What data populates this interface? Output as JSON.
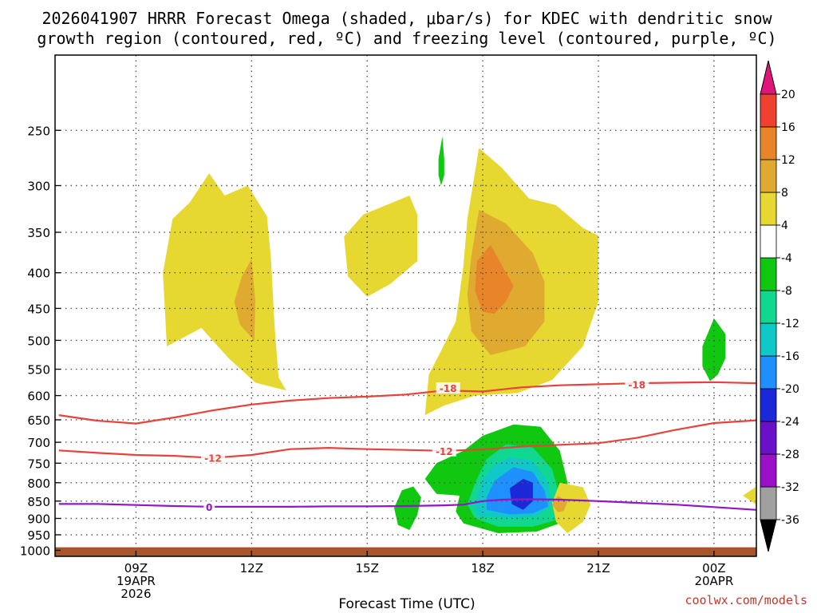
{
  "chart_data": {
    "type": "contour",
    "title_line1": "2026041907 HRRR Forecast Omega (shaded, μbar/s) for KDEC with dendritic snow",
    "title_line2": "growth region (contoured, red, ºC) and freezing level (contoured, purple, ºC)",
    "xlabel": "Forecast Time (UTC)",
    "ylabel": "",
    "credit": "coolwx.com/models",
    "x_range_hours": [
      6.9,
      25.1
    ],
    "y_range_hpa": [
      195,
      1020
    ],
    "x_ticks": [
      {
        "hour": 9,
        "lines": [
          "09Z",
          "19APR",
          "2026"
        ]
      },
      {
        "hour": 12,
        "lines": [
          "12Z"
        ]
      },
      {
        "hour": 15,
        "lines": [
          "15Z"
        ]
      },
      {
        "hour": 18,
        "lines": [
          "18Z"
        ]
      },
      {
        "hour": 21,
        "lines": [
          "21Z"
        ]
      },
      {
        "hour": 24,
        "lines": [
          "00Z",
          "20APR"
        ]
      }
    ],
    "y_ticks": [
      250,
      300,
      350,
      400,
      450,
      500,
      550,
      600,
      650,
      700,
      750,
      800,
      850,
      900,
      950,
      1000
    ],
    "ground_layer_top_hpa": 990,
    "colorbar": {
      "colors": [
        "#000000",
        "#a0a0a0",
        "#9a10c8",
        "#6a10c8",
        "#1a28d8",
        "#1e90ff",
        "#10c8c8",
        "#10d890",
        "#10c810",
        "#ffffff",
        "#e6d830",
        "#e0aa30",
        "#e88528",
        "#f04030",
        "#e0157a"
      ],
      "labels": [
        "-36",
        "-32",
        "-28",
        "-24",
        "-20",
        "-16",
        "-12",
        "-8",
        "-4",
        "4",
        "8",
        "12",
        "16",
        "20"
      ]
    },
    "shaded_regions": [
      {
        "name": "left-updraft-outer",
        "color": "#e6d830",
        "points": [
          [
            10.9,
            288
          ],
          [
            11.3,
            310
          ],
          [
            11.9,
            300
          ],
          [
            12.4,
            332
          ],
          [
            12.5,
            380
          ],
          [
            12.6,
            480
          ],
          [
            12.7,
            565
          ],
          [
            12.9,
            590
          ],
          [
            12.1,
            575
          ],
          [
            11.4,
            530
          ],
          [
            10.7,
            480
          ],
          [
            9.8,
            510
          ],
          [
            9.7,
            400
          ],
          [
            9.95,
            335
          ],
          [
            10.4,
            317
          ]
        ]
      },
      {
        "name": "left-updraft-core",
        "color": "#e0aa30",
        "points": [
          [
            12.0,
            382
          ],
          [
            12.1,
            440
          ],
          [
            12.07,
            500
          ],
          [
            11.7,
            475
          ],
          [
            11.55,
            440
          ],
          [
            11.75,
            405
          ]
        ]
      },
      {
        "name": "mid-updraft",
        "color": "#e6d830",
        "points": [
          [
            16.1,
            310
          ],
          [
            16.3,
            330
          ],
          [
            16.3,
            385
          ],
          [
            15.6,
            415
          ],
          [
            15.0,
            433
          ],
          [
            14.5,
            405
          ],
          [
            14.4,
            355
          ],
          [
            14.9,
            330
          ]
        ]
      },
      {
        "name": "thin-green-streak",
        "color": "#10c810",
        "points": [
          [
            16.95,
            255
          ],
          [
            17.0,
            275
          ],
          [
            17.0,
            290
          ],
          [
            16.92,
            300
          ],
          [
            16.85,
            290
          ],
          [
            16.85,
            275
          ]
        ]
      },
      {
        "name": "main-updraft-outer",
        "color": "#e6d830",
        "points": [
          [
            17.9,
            265
          ],
          [
            18.5,
            283
          ],
          [
            19.2,
            313
          ],
          [
            19.9,
            320
          ],
          [
            20.6,
            345
          ],
          [
            21.0,
            354
          ],
          [
            21.0,
            440
          ],
          [
            20.6,
            510
          ],
          [
            19.8,
            570
          ],
          [
            18.9,
            595
          ],
          [
            17.8,
            600
          ],
          [
            17.0,
            620
          ],
          [
            16.5,
            640
          ],
          [
            16.6,
            560
          ],
          [
            16.9,
            520
          ],
          [
            17.3,
            470
          ],
          [
            17.5,
            390
          ],
          [
            17.6,
            335
          ]
        ]
      },
      {
        "name": "main-updraft-mid",
        "color": "#e0aa30",
        "points": [
          [
            17.9,
            325
          ],
          [
            18.6,
            340
          ],
          [
            19.3,
            375
          ],
          [
            19.6,
            412
          ],
          [
            19.6,
            470
          ],
          [
            19.1,
            510
          ],
          [
            18.2,
            525
          ],
          [
            17.7,
            485
          ],
          [
            17.6,
            430
          ],
          [
            17.7,
            380
          ]
        ]
      },
      {
        "name": "main-updraft-core",
        "color": "#e88528",
        "points": [
          [
            18.2,
            365
          ],
          [
            18.55,
            395
          ],
          [
            18.8,
            418
          ],
          [
            18.6,
            440
          ],
          [
            18.3,
            458
          ],
          [
            18.0,
            455
          ],
          [
            17.8,
            425
          ],
          [
            17.85,
            385
          ]
        ]
      },
      {
        "name": "right-green-blob",
        "color": "#10c810",
        "points": [
          [
            24.0,
            465
          ],
          [
            24.3,
            490
          ],
          [
            24.3,
            530
          ],
          [
            24.1,
            560
          ],
          [
            23.9,
            572
          ],
          [
            23.7,
            545
          ],
          [
            23.7,
            510
          ]
        ]
      },
      {
        "name": "downdraft-outer",
        "color": "#10c810",
        "points": [
          [
            18.8,
            660
          ],
          [
            19.5,
            665
          ],
          [
            20.0,
            720
          ],
          [
            20.2,
            800
          ],
          [
            20.2,
            860
          ],
          [
            20.1,
            910
          ],
          [
            19.4,
            940
          ],
          [
            18.4,
            945
          ],
          [
            17.5,
            915
          ],
          [
            17.3,
            880
          ],
          [
            17.4,
            835
          ],
          [
            16.8,
            830
          ],
          [
            16.5,
            790
          ],
          [
            16.8,
            750
          ],
          [
            17.5,
            720
          ],
          [
            18.0,
            685
          ]
        ]
      },
      {
        "name": "downdraft-teal",
        "color": "#10d890",
        "points": [
          [
            18.6,
            705
          ],
          [
            19.3,
            712
          ],
          [
            19.8,
            765
          ],
          [
            20.0,
            840
          ],
          [
            19.9,
            905
          ],
          [
            19.3,
            925
          ],
          [
            18.4,
            925
          ],
          [
            17.8,
            900
          ],
          [
            17.6,
            860
          ],
          [
            17.8,
            800
          ],
          [
            18.1,
            740
          ]
        ]
      },
      {
        "name": "downdraft-cyan",
        "color": "#10c8c8",
        "points": [
          [
            18.7,
            735
          ],
          [
            19.3,
            745
          ],
          [
            19.7,
            800
          ],
          [
            19.8,
            860
          ],
          [
            19.4,
            895
          ],
          [
            18.6,
            900
          ],
          [
            17.85,
            890
          ],
          [
            17.8,
            855
          ],
          [
            18.0,
            790
          ],
          [
            18.3,
            755
          ]
        ]
      },
      {
        "name": "downdraft-blue",
        "color": "#1e90ff",
        "points": [
          [
            18.8,
            760
          ],
          [
            19.3,
            772
          ],
          [
            19.6,
            820
          ],
          [
            19.7,
            865
          ],
          [
            19.3,
            885
          ],
          [
            18.7,
            888
          ],
          [
            18.1,
            875
          ],
          [
            18.1,
            840
          ],
          [
            18.3,
            795
          ]
        ]
      },
      {
        "name": "downdraft-core",
        "color": "#1a28d8",
        "points": [
          [
            19.05,
            790
          ],
          [
            19.3,
            800
          ],
          [
            19.3,
            850
          ],
          [
            19.05,
            875
          ],
          [
            18.75,
            858
          ],
          [
            18.7,
            815
          ]
        ]
      },
      {
        "name": "small-green-left",
        "color": "#10c810",
        "points": [
          [
            16.2,
            810
          ],
          [
            16.4,
            840
          ],
          [
            16.3,
            890
          ],
          [
            16.1,
            935
          ],
          [
            15.8,
            920
          ],
          [
            15.7,
            870
          ],
          [
            15.9,
            820
          ]
        ]
      },
      {
        "name": "small-yellow-right",
        "color": "#e6d830",
        "points": [
          [
            20.0,
            800
          ],
          [
            20.6,
            812
          ],
          [
            20.8,
            860
          ],
          [
            20.6,
            910
          ],
          [
            20.2,
            945
          ],
          [
            19.9,
            910
          ],
          [
            19.8,
            855
          ]
        ]
      },
      {
        "name": "small-orange-right",
        "color": "#e0aa30",
        "points": [
          [
            19.95,
            835
          ],
          [
            20.2,
            852
          ],
          [
            20.1,
            878
          ],
          [
            19.95,
            882
          ],
          [
            19.8,
            860
          ]
        ]
      },
      {
        "name": "edge-yellow-right",
        "color": "#e6d830",
        "points": [
          [
            25.1,
            810
          ],
          [
            25.1,
            860
          ],
          [
            24.75,
            835
          ]
        ]
      }
    ],
    "contours": [
      {
        "name": "minus-18-isotherm",
        "color": "#e8423c",
        "label": "-18",
        "label_at": [
          17.1,
          585
        ],
        "label_at2": [
          22.0,
          578
        ],
        "points": [
          [
            7.0,
            640
          ],
          [
            8.0,
            652
          ],
          [
            9.0,
            658
          ],
          [
            10.0,
            645
          ],
          [
            11.0,
            630
          ],
          [
            12.0,
            618
          ],
          [
            13.0,
            610
          ],
          [
            14.0,
            605
          ],
          [
            15.0,
            602
          ],
          [
            16.0,
            598
          ],
          [
            17.0,
            590
          ],
          [
            18.0,
            592
          ],
          [
            19.0,
            584
          ],
          [
            20.0,
            580
          ],
          [
            21.0,
            578
          ],
          [
            22.0,
            576
          ],
          [
            23.0,
            575
          ],
          [
            24.0,
            574
          ],
          [
            25.1,
            576
          ]
        ]
      },
      {
        "name": "minus-12-isotherm",
        "color": "#e8423c",
        "label": "-12",
        "label_at": [
          11.0,
          737
        ],
        "label_at2": [
          17.0,
          720
        ],
        "points": [
          [
            7.0,
            719
          ],
          [
            8.0,
            725
          ],
          [
            9.0,
            730
          ],
          [
            10.0,
            732
          ],
          [
            11.0,
            737
          ],
          [
            12.0,
            730
          ],
          [
            13.0,
            716
          ],
          [
            14.0,
            713
          ],
          [
            15.0,
            716
          ],
          [
            16.0,
            718
          ],
          [
            17.0,
            720
          ],
          [
            18.0,
            717
          ],
          [
            19.0,
            710
          ],
          [
            20.0,
            706
          ],
          [
            21.0,
            702
          ],
          [
            22.0,
            690
          ],
          [
            23.0,
            672
          ],
          [
            24.0,
            657
          ],
          [
            25.1,
            651
          ]
        ]
      },
      {
        "name": "freezing-level",
        "color": "#8e18c8",
        "label": "0",
        "label_at": [
          10.9,
          866
        ],
        "points": [
          [
            7.0,
            858
          ],
          [
            8.0,
            858
          ],
          [
            9.0,
            861
          ],
          [
            10.0,
            864
          ],
          [
            11.0,
            866
          ],
          [
            12.0,
            866
          ],
          [
            13.0,
            866
          ],
          [
            14.0,
            865
          ],
          [
            15.0,
            865
          ],
          [
            16.0,
            864
          ],
          [
            17.0,
            862
          ],
          [
            17.5,
            860
          ],
          [
            18.0,
            850
          ],
          [
            18.5,
            846
          ],
          [
            19.0,
            845
          ],
          [
            19.5,
            845
          ],
          [
            20.0,
            846
          ],
          [
            20.5,
            848
          ],
          [
            21.0,
            850
          ],
          [
            22.0,
            855
          ],
          [
            23.0,
            860
          ],
          [
            24.0,
            867
          ],
          [
            25.1,
            875
          ]
        ]
      }
    ]
  }
}
